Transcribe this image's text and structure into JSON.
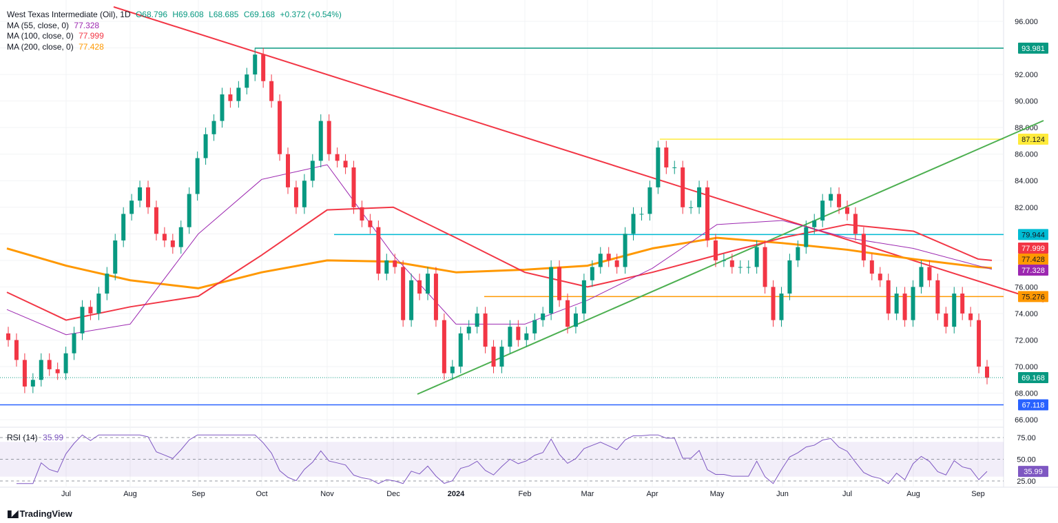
{
  "legend": {
    "symbol": "West Texas Intermediate (Oil), 1D",
    "open": "O68.796",
    "high": "H69.608",
    "low": "L68.685",
    "close": "C69.168",
    "change": "+0.372 (+0.54%)",
    "ma55_label": "MA (55, close, 0)",
    "ma55_value": "77.328",
    "ma100_label": "MA (100, close, 0)",
    "ma100_value": "77.999",
    "ma200_label": "MA (200, close, 0)",
    "ma200_value": "77.428",
    "rsi_label": "RSI (14)",
    "rsi_value": "35.99"
  },
  "branding": {
    "name": "TradingView"
  },
  "colors": {
    "up": "#089981",
    "down": "#f23645",
    "ma55": "#9c27b0",
    "ma100": "#f23645",
    "ma200": "#ff9800",
    "rsi": "#7e57c2"
  },
  "chart_data": {
    "type": "candlestick",
    "ylim": [
      66,
      96
    ],
    "y_ticks": [
      "96.000",
      "92.000",
      "90.000",
      "88.000",
      "86.000",
      "84.000",
      "82.000",
      "76.000",
      "74.000",
      "72.000",
      "70.000",
      "68.000",
      "66.000"
    ],
    "x_ticks": [
      "Jul",
      "Aug",
      "Sep",
      "Oct",
      "Nov",
      "Dec",
      "2024",
      "Feb",
      "Mar",
      "Apr",
      "May",
      "Jun",
      "Jul",
      "Aug",
      "Sep"
    ],
    "closes": [
      72,
      70.5,
      68.5,
      69,
      70.5,
      69.8,
      69.5,
      71,
      72.5,
      74.5,
      74,
      75.5,
      77,
      79.5,
      81.5,
      82.5,
      83.5,
      82,
      80,
      79.5,
      79,
      80.5,
      83,
      85.7,
      87.5,
      88.5,
      90.5,
      90,
      91,
      92,
      93.5,
      91.5,
      90,
      86,
      83.5,
      82,
      84,
      85.5,
      88.5,
      86,
      85.5,
      85,
      82,
      81,
      80.5,
      77,
      78,
      77.5,
      73.5,
      76.5,
      75.5,
      77,
      73.5,
      69.5,
      70,
      72.5,
      73,
      74,
      71.5,
      70,
      71.5,
      73,
      72,
      72.5,
      73.5,
      74,
      77.5,
      75,
      73,
      74,
      76.5,
      77.5,
      78.5,
      78,
      77.5,
      80,
      81.5,
      81.5,
      83.5,
      86.5,
      85,
      85,
      82,
      82,
      83.5,
      79.5,
      78,
      78,
      77.5,
      77.5,
      77.5,
      79,
      76,
      73.5,
      75.5,
      78,
      79,
      80.5,
      81,
      82.5,
      83,
      82,
      81.5,
      80,
      78,
      77,
      76.5,
      74,
      75.5,
      73.5,
      76,
      77.5,
      76.5,
      74,
      73,
      75.5,
      74,
      73.5,
      70,
      69.168
    ],
    "moving_averages_at_month_ticks": {
      "points": [
        "start",
        "Jul",
        "Aug",
        "Sep",
        "Oct",
        "Nov",
        "Dec",
        "2024",
        "Feb",
        "Mar",
        "Apr",
        "May",
        "Jun",
        "Jul",
        "Aug",
        "Sep",
        "end"
      ],
      "ma55": [
        74.3,
        72.4,
        73.2,
        80,
        84.1,
        85.2,
        78.4,
        73.2,
        73.2,
        75,
        77.4,
        80.7,
        81,
        79.7,
        78.9,
        77.6,
        77.328
      ],
      "ma100": [
        75.6,
        73.5,
        74.5,
        75.3,
        78.4,
        81.8,
        82,
        79.7,
        77.1,
        76,
        77.1,
        78.4,
        79.7,
        80.7,
        80.2,
        78.1,
        77.999
      ],
      "ma200": [
        78.9,
        77.6,
        76.5,
        75.9,
        77.1,
        78,
        77.9,
        77.1,
        77.3,
        77.6,
        78.9,
        79.7,
        79.3,
        78.8,
        78.1,
        77.5,
        77.428
      ]
    },
    "levels": [
      {
        "value": "93.981",
        "color": "#089981",
        "text_color": "#ffffff"
      },
      {
        "value": "87.124",
        "color": "#ffeb3b",
        "text_color": "#131722"
      },
      {
        "value": "79.944",
        "color": "#00bcd4",
        "text_color": "#131722"
      },
      {
        "value": "75.276",
        "color": "#ff9800",
        "text_color": "#131722"
      },
      {
        "value": "67.118",
        "color": "#2962ff",
        "text_color": "#ffffff"
      }
    ],
    "price_tags": [
      {
        "value": "77.999",
        "color": "#f23645",
        "text_color": "#ffffff"
      },
      {
        "value": "77.428",
        "color": "#ff9800",
        "text_color": "#131722"
      },
      {
        "value": "77.328",
        "color": "#9c27b0",
        "text_color": "#ffffff"
      },
      {
        "value": "69.168",
        "color": "#089981",
        "text_color": "#ffffff"
      }
    ],
    "rsi": {
      "ylim": [
        25,
        75
      ],
      "y_ticks": [
        "75.00",
        "50.00",
        "25.00"
      ],
      "last": "35.99"
    }
  }
}
